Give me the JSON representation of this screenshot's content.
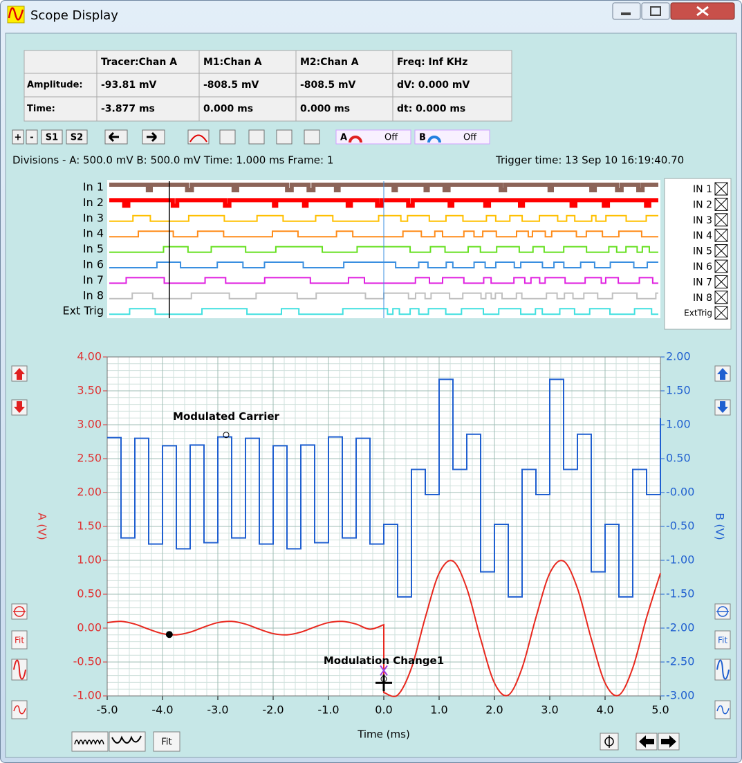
{
  "window": {
    "title": "Scope Display"
  },
  "info_table": {
    "columns": [
      "Tracer:Chan A",
      "M1:Chan A",
      "M2:Chan A",
      "Freq: Inf KHz"
    ],
    "rows": [
      {
        "label": "Amplitude:",
        "cells": [
          "-93.81 mV",
          "-808.5 mV",
          "-808.5 mV",
          "dV: 0.000 mV"
        ]
      },
      {
        "label": "Time:",
        "cells": [
          "-3.877 ms",
          "0.000 ms",
          "0.000 ms",
          "dt:  0.000 ms"
        ]
      }
    ]
  },
  "toolbar": {
    "buttons": [
      "+",
      "-",
      "S1",
      "S2"
    ],
    "channel_a": {
      "label": "A",
      "state": "Off"
    },
    "channel_b": {
      "label": "B",
      "state": "Off"
    }
  },
  "status": {
    "divisions": "Divisions -  A: 500.0 mV   B: 500.0 mV   Time: 1.000 ms  Frame: 1",
    "trigger": "Trigger time: 13 Sep 10 16:19:40.70"
  },
  "digital": {
    "channels": [
      {
        "name": "In 1",
        "toggle": "IN 1",
        "color": "#8c6458"
      },
      {
        "name": "In 2",
        "toggle": "IN 2",
        "color": "#ff0000"
      },
      {
        "name": "In 3",
        "toggle": "IN 3",
        "color": "#ffc000"
      },
      {
        "name": "In 4",
        "toggle": "IN 4",
        "color": "#ff8c1a"
      },
      {
        "name": "In 5",
        "toggle": "IN 5",
        "color": "#66e020"
      },
      {
        "name": "In 6",
        "toggle": "IN 6",
        "color": "#3a8fe0"
      },
      {
        "name": "In 7",
        "toggle": "IN 7",
        "color": "#e020e0"
      },
      {
        "name": "In 8",
        "toggle": "IN 8",
        "color": "#c0c0c0"
      },
      {
        "name": "Ext Trig",
        "toggle": "ExtTrig",
        "color": "#40e0e0"
      }
    ]
  },
  "buttons": {
    "fit": "Fit"
  },
  "chart_data": {
    "type": "line",
    "xlabel": "Time (ms)",
    "ylabel": "A (V)",
    "y2label": "B (V)",
    "xlim": [
      -5,
      5
    ],
    "xticks": [
      {
        "value": -5,
        "label": "-5.0"
      },
      {
        "value": -4,
        "label": "-4.0"
      },
      {
        "value": -3,
        "label": "-3.0"
      },
      {
        "value": -2,
        "label": "-2.0"
      },
      {
        "value": -1,
        "label": "-1.0"
      },
      {
        "value": 0,
        "label": "0.0"
      },
      {
        "value": 1,
        "label": "1.0"
      },
      {
        "value": 2,
        "label": "2.0"
      },
      {
        "value": 3,
        "label": "3.0"
      },
      {
        "value": 4,
        "label": "4.0"
      },
      {
        "value": 5,
        "label": "5.0"
      }
    ],
    "ylim": [
      -1,
      4
    ],
    "yticks": [
      {
        "value": -1,
        "label": "-1.00"
      },
      {
        "value": -0.5,
        "label": "-0.50"
      },
      {
        "value": 0,
        "label": "0.00"
      },
      {
        "value": 0.5,
        "label": "0.50"
      },
      {
        "value": 1,
        "label": "1.00"
      },
      {
        "value": 1.5,
        "label": "1.50"
      },
      {
        "value": 2,
        "label": "2.00"
      },
      {
        "value": 2.5,
        "label": "2.50"
      },
      {
        "value": 3,
        "label": "3.00"
      },
      {
        "value": 3.5,
        "label": "3.50"
      },
      {
        "value": 4,
        "label": "4.00"
      }
    ],
    "y2lim": [
      -3,
      2
    ],
    "y2ticks": [
      {
        "value": -3,
        "label": "-3.00"
      },
      {
        "value": -2.5,
        "label": "-2.50"
      },
      {
        "value": -2,
        "label": "-2.00"
      },
      {
        "value": -1.5,
        "label": "-1.50"
      },
      {
        "value": -1,
        "label": "-1.00"
      },
      {
        "value": -0.5,
        "label": "-0.50"
      },
      {
        "value": 0,
        "label": "-0.00"
      },
      {
        "value": 0.5,
        "label": "0.50"
      },
      {
        "value": 1,
        "label": "1.00"
      },
      {
        "value": 1.5,
        "label": "1.50"
      },
      {
        "value": 2,
        "label": "2.00"
      }
    ],
    "grid": true,
    "minor_divisions": 5,
    "series": [
      {
        "color": "#e8281e",
        "x": [
          -5,
          -4.75,
          -4.5,
          -4.25,
          -4,
          -3.75,
          -3.5,
          -3.25,
          -3,
          -2.75,
          -2.5,
          -2.25,
          -2,
          -1.75,
          -1.5,
          -1.25,
          -1,
          -0.75,
          -0.5,
          -0.25,
          0,
          0,
          0.25,
          0.5,
          0.75,
          1,
          1.25,
          1.5,
          1.75,
          2,
          2.25,
          2.5,
          2.75,
          3,
          3.25,
          3.5,
          3.75,
          4,
          4.25,
          4.5,
          4.75,
          5
        ],
        "values": [
          0.081,
          0.099,
          0.059,
          -0.016,
          -0.081,
          -0.099,
          -0.059,
          0.016,
          0.081,
          0.099,
          0.059,
          -0.016,
          -0.081,
          -0.099,
          -0.059,
          0.016,
          0.081,
          0.099,
          0.059,
          -0.016,
          0.05,
          -0.95,
          -0.988,
          -0.588,
          0.156,
          0.809,
          0.988,
          0.588,
          -0.156,
          -0.809,
          -0.988,
          -0.588,
          0.156,
          0.809,
          0.988,
          0.588,
          -0.156,
          -0.809,
          -0.988,
          -0.588,
          0.156,
          0.809
        ]
      },
      {
        "color": "#1f5fd0",
        "axis": "y2",
        "step": true,
        "x": [
          -5,
          -4.75,
          -4.5,
          -4.25,
          -4,
          -3.75,
          -3.5,
          -3.25,
          -3,
          -2.75,
          -2.5,
          -2.25,
          -2,
          -1.75,
          -1.5,
          -1.25,
          -1,
          -0.75,
          -0.5,
          -0.25,
          0,
          0.25,
          0.5,
          0.75,
          1,
          1.25,
          1.5,
          1.75,
          2,
          2.25,
          2.5,
          2.75,
          3,
          3.25,
          3.5,
          3.75,
          4,
          4.25,
          4.5,
          4.75,
          5
        ],
        "values": [
          0.81,
          -0.67,
          0.8,
          -0.76,
          0.69,
          -0.83,
          0.7,
          -0.74,
          0.82,
          -0.67,
          0.8,
          -0.76,
          0.69,
          -0.83,
          0.7,
          -0.74,
          0.82,
          -0.67,
          0.8,
          -0.76,
          -0.47,
          -1.54,
          0.34,
          -0.03,
          1.67,
          0.34,
          0.86,
          -1.17,
          -0.47,
          -1.54,
          0.34,
          -0.03,
          1.67,
          0.34,
          0.86,
          -1.17,
          -0.47,
          -1.54,
          0.34,
          -0.03,
          1.1
        ]
      }
    ],
    "annotations": [
      {
        "text": "Modulated Carrier",
        "x": -2.85,
        "y": 0.85,
        "axis": "y2"
      },
      {
        "text": "Modulation Change1",
        "x": 0,
        "y": -0.75
      }
    ],
    "markers": [
      {
        "x": -3.877,
        "y": -0.09381
      },
      {
        "x": 0,
        "y": -0.8085
      }
    ]
  }
}
